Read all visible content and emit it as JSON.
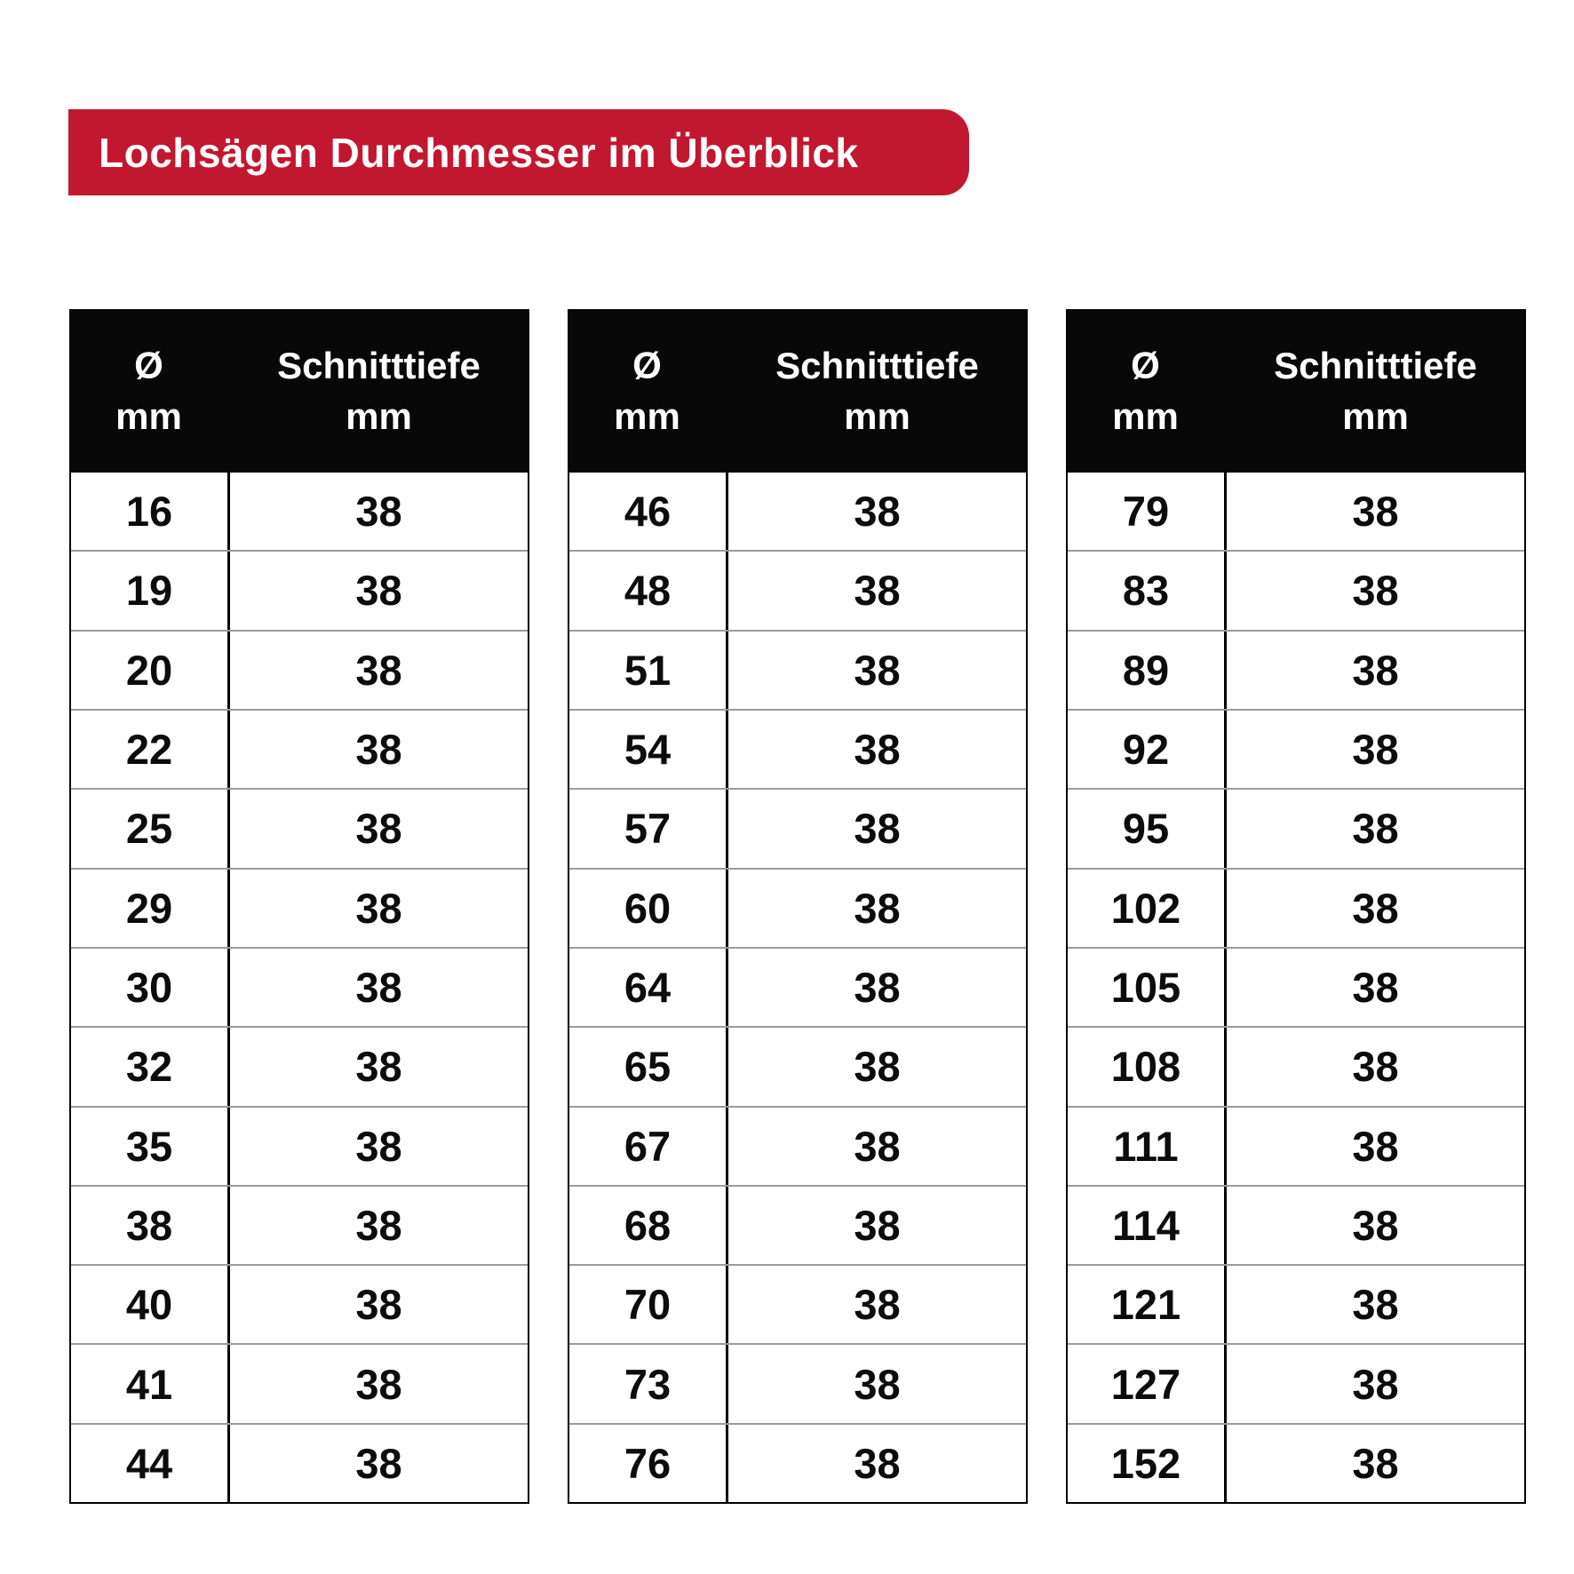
{
  "banner": {
    "label": "Lochsägen Durchmesser im Überblick",
    "bg_color": "#C2182F",
    "text_color": "#FFFFFF"
  },
  "table_header": {
    "diameter_symbol": "Ø",
    "depth_label": "Schnitttiefe",
    "unit": "mm",
    "bg_color": "#080808",
    "text_color": "#FFFFFF"
  },
  "chart_data": {
    "type": "table",
    "title": "Lochsägen Durchmesser im Überblick",
    "columns": [
      "Ø mm",
      "Schnitttiefe mm"
    ],
    "tables": [
      {
        "rows": [
          [
            16,
            38
          ],
          [
            19,
            38
          ],
          [
            20,
            38
          ],
          [
            22,
            38
          ],
          [
            25,
            38
          ],
          [
            29,
            38
          ],
          [
            30,
            38
          ],
          [
            32,
            38
          ],
          [
            35,
            38
          ],
          [
            38,
            38
          ],
          [
            40,
            38
          ],
          [
            41,
            38
          ],
          [
            44,
            38
          ]
        ]
      },
      {
        "rows": [
          [
            46,
            38
          ],
          [
            48,
            38
          ],
          [
            51,
            38
          ],
          [
            54,
            38
          ],
          [
            57,
            38
          ],
          [
            60,
            38
          ],
          [
            64,
            38
          ],
          [
            65,
            38
          ],
          [
            67,
            38
          ],
          [
            68,
            38
          ],
          [
            70,
            38
          ],
          [
            73,
            38
          ],
          [
            76,
            38
          ]
        ]
      },
      {
        "rows": [
          [
            79,
            38
          ],
          [
            83,
            38
          ],
          [
            89,
            38
          ],
          [
            92,
            38
          ],
          [
            95,
            38
          ],
          [
            102,
            38
          ],
          [
            105,
            38
          ],
          [
            108,
            38
          ],
          [
            111,
            38
          ],
          [
            114,
            38
          ],
          [
            121,
            38
          ],
          [
            127,
            38
          ],
          [
            152,
            38
          ]
        ]
      }
    ]
  }
}
